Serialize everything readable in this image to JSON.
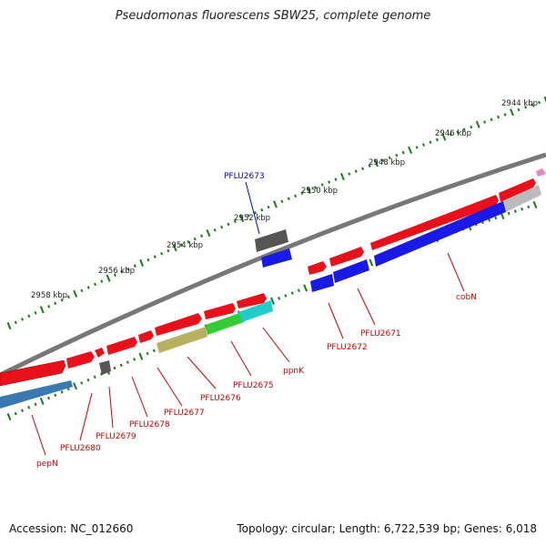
{
  "title": "Pseudomonas fluorescens SBW25, complete genome",
  "footer": {
    "accession": "Accession: NC_012660",
    "stats": "Topology: circular; Length: 6,722,539 bp; Genes: 6,018"
  },
  "scale_labels": [
    "2944 kbp",
    "2946 kbp",
    "2948 kbp",
    "2950 kbp",
    "2952 kbp",
    "2954 kbp",
    "2956 kbp",
    "2958 kbp"
  ],
  "colors": {
    "red": "#e8101a",
    "blue": "#1a1ae8",
    "grey_dark": "#555555",
    "grey_light": "#bbbbbb",
    "steel": "#3a78b0",
    "green": "#33cc33",
    "khaki": "#b8b060",
    "cyan": "#22cccc",
    "pink": "#f080c0",
    "tick": "#1a7a1a",
    "axis": "#777777",
    "label_red": "#cc0000",
    "label_blue": "#0000cc"
  },
  "gene_labels": {
    "PFLU2673": "PFLU2673",
    "cobN": "cobN",
    "PFLU2671": "PFLU2671",
    "PFLU2672": "PFLU2672",
    "ppnK": "ppnK",
    "PFLU2675": "PFLU2675",
    "PFLU2676": "PFLU2676",
    "PFLU2677": "PFLU2677",
    "PFLU2678": "PFLU2678",
    "PFLU2679": "PFLU2679",
    "PFLU2680": "PFLU2680",
    "pepN": "pepN"
  }
}
